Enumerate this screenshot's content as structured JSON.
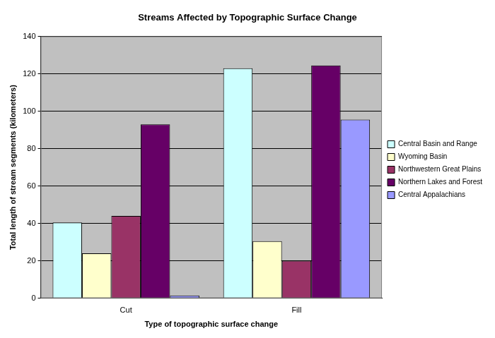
{
  "chart_data": {
    "type": "bar",
    "title": "Streams Affected by Topographic Surface Change",
    "x_label": "Type of topographic surface change",
    "y_label": "Total length of stream segments (kilometers)",
    "categories": [
      "Cut",
      "Fill"
    ],
    "series": [
      {
        "name": "Central Basin and Range",
        "color": "#ccffff",
        "values": [
          40.5,
          123
        ]
      },
      {
        "name": "Wyoming Basin",
        "color": "#ffffcc",
        "values": [
          24,
          30.5
        ]
      },
      {
        "name": "Northwestern Great Plains",
        "color": "#993366",
        "values": [
          44,
          20
        ]
      },
      {
        "name": "Northern Lakes and Forest",
        "color": "#660066",
        "values": [
          93,
          124.5
        ]
      },
      {
        "name": "Central Appalachians",
        "color": "#9999ff",
        "values": [
          1.5,
          95.5
        ]
      }
    ],
    "ylim": [
      0,
      140
    ],
    "yticks": [
      0,
      20,
      40,
      60,
      80,
      100,
      120,
      140
    ],
    "grid": true,
    "legend": "right"
  }
}
